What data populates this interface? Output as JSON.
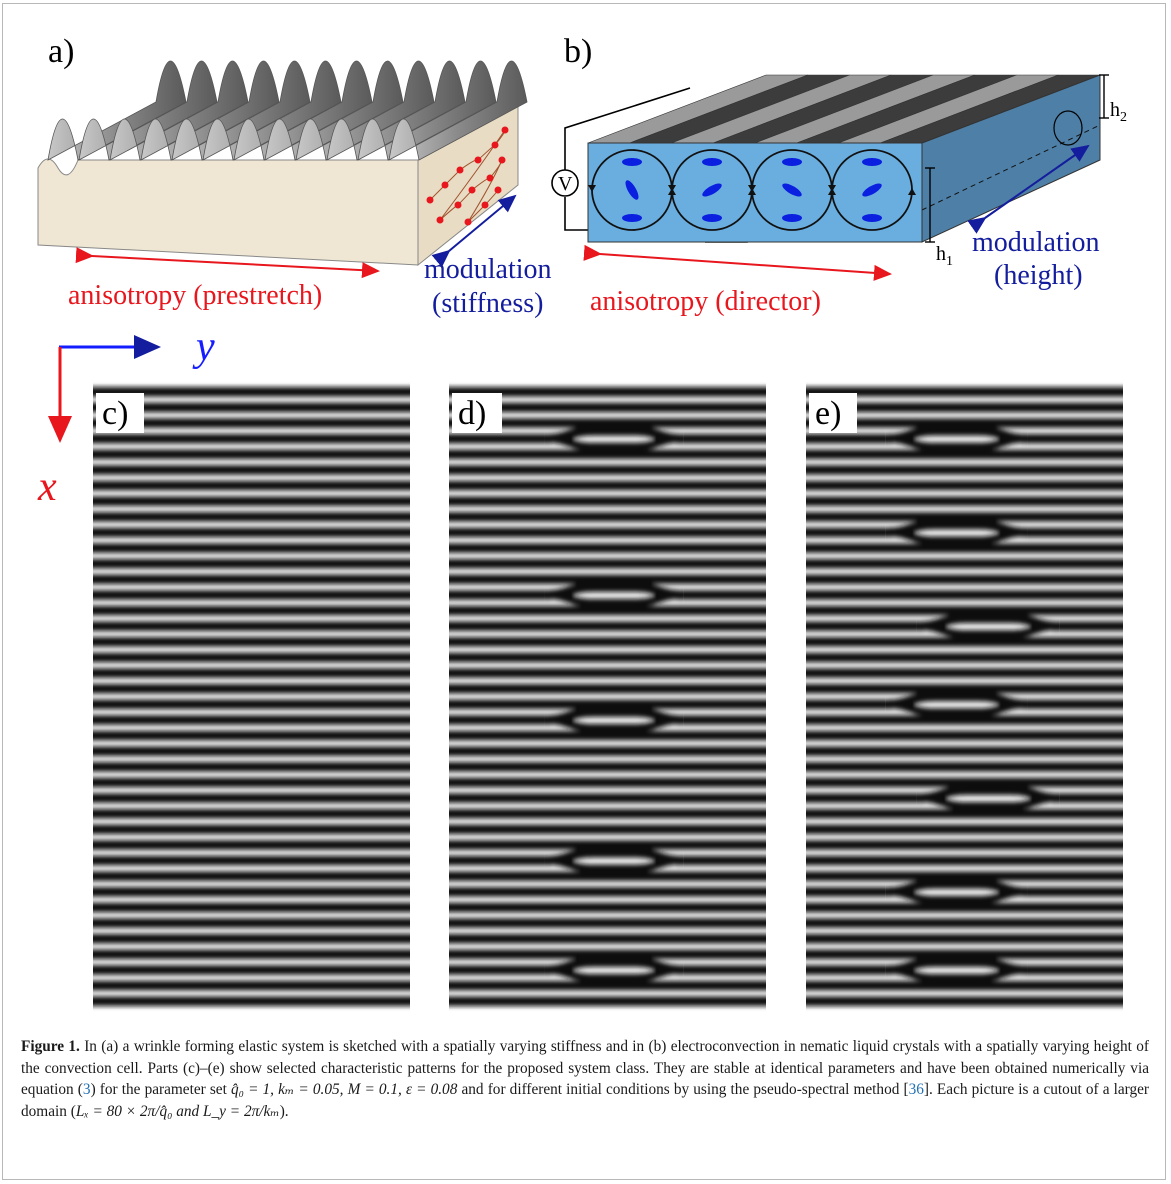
{
  "panels": {
    "a": {
      "letter": "a)",
      "anisotropy_label": "anisotropy (prestretch)",
      "modulation_label_1": "modulation",
      "modulation_label_2": "(stiffness)"
    },
    "b": {
      "letter": "b)",
      "voltage_label": "V",
      "h1_label": "h",
      "h1_sub": "1",
      "h2_label": "h",
      "h2_sub": "2",
      "anisotropy_label": "anisotropy (director)",
      "modulation_label_1": "modulation",
      "modulation_label_2": "(height)"
    },
    "c": {
      "letter": "c)"
    },
    "d": {
      "letter": "d)"
    },
    "e": {
      "letter": "e)"
    }
  },
  "axes": {
    "y_label": "y",
    "x_label": "x"
  },
  "colors": {
    "red": "#e8161d",
    "blue": "#131d9d",
    "cell_blue": "#5a9fd4",
    "ellipse_blue": "#0a1fe0"
  },
  "patterns": {
    "stripe_count": 40,
    "d_defects": [
      {
        "row": 3,
        "cols": [
          0.3,
          0.74
        ]
      },
      {
        "row": 13,
        "cols": [
          0.3,
          0.74
        ]
      },
      {
        "row": 21,
        "cols": [
          0.3,
          0.74
        ]
      },
      {
        "row": 30,
        "cols": [
          0.3,
          0.74
        ]
      },
      {
        "row": 37,
        "cols": [
          0.3,
          0.74
        ]
      }
    ],
    "e_defects": [
      {
        "row": 3,
        "cols": [
          0.25,
          0.7
        ]
      },
      {
        "row": 9,
        "cols": [
          0.25,
          0.7
        ]
      },
      {
        "row": 15,
        "cols": [
          0.35,
          0.8
        ]
      },
      {
        "row": 20,
        "cols": [
          0.25,
          0.7
        ]
      },
      {
        "row": 26,
        "cols": [
          0.35,
          0.8
        ]
      },
      {
        "row": 32,
        "cols": [
          0.25,
          0.7
        ]
      },
      {
        "row": 37,
        "cols": [
          0.25,
          0.7
        ]
      }
    ]
  },
  "caption": {
    "fig_label": "Figure 1.",
    "t1": " In (a) a wrinkle forming elastic system is sketched with a spatially varying stiffness and in (b) electroconvection in nematic liquid crystals with a spatially varying height of the convection cell. Parts (c)–(e) show selected characteristic patterns for the proposed system class. They are stable at identical parameters and have been obtained numerically via equation (",
    "ref_eq": "3",
    "t2": ") for the parameter set ",
    "params": "q̂₀ = 1, kₘ = 0.05, M = 0.1, ε = 0.08",
    "t3": " and for different initial conditions by using the pseudo-spectral method [",
    "ref_36": "36",
    "t4": "]. Each picture is a cutout of a larger domain (",
    "domain": "Lₓ = 80 × 2π/q̂₀ and L_y = 2π/kₘ",
    "t5": ")."
  }
}
